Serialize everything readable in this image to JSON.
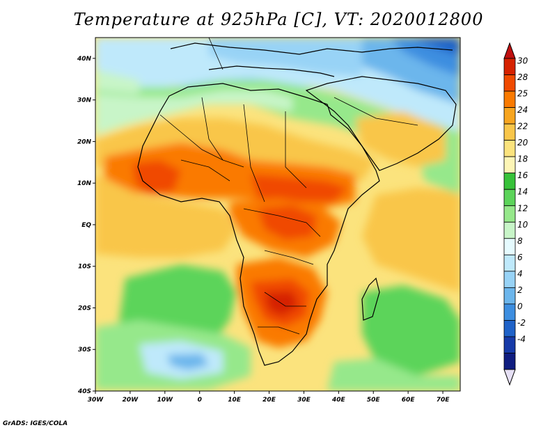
{
  "title": "Temperature at 925hPa [C], VT: 2020012800",
  "credit": "GrADS: IGES/COLA",
  "map": {
    "lon_range": [
      -30,
      75
    ],
    "lat_range": [
      -40,
      45
    ],
    "lon_ticks": [
      "30W",
      "20W",
      "10W",
      "0",
      "10E",
      "20E",
      "30E",
      "40E",
      "50E",
      "60E",
      "70E"
    ],
    "lat_ticks": [
      "40N",
      "30N",
      "20N",
      "10N",
      "EQ",
      "10S",
      "20S",
      "30S",
      "40S"
    ]
  },
  "colorbar": {
    "labels": [
      "30",
      "28",
      "25",
      "24",
      "22",
      "20",
      "18",
      "16",
      "14",
      "12",
      "10",
      "8",
      "6",
      "4",
      "2",
      "0",
      "-2",
      "-4"
    ],
    "colors": [
      "#d62200",
      "#f04a00",
      "#fa7a00",
      "#f7a51f",
      "#f9c64a",
      "#fbe37d",
      "#fdf5b6",
      "#37c23a",
      "#5cd45a",
      "#96e88b",
      "#c8f5c8",
      "#e6fbff",
      "#bfe9fb",
      "#98d3f6",
      "#6cb6ec",
      "#3d8ee0",
      "#1f62c8",
      "#163aa8",
      "#0f1d80"
    ],
    "bottom_triangle": "#e6e0f5",
    "top_triangle": "#c01010"
  }
}
